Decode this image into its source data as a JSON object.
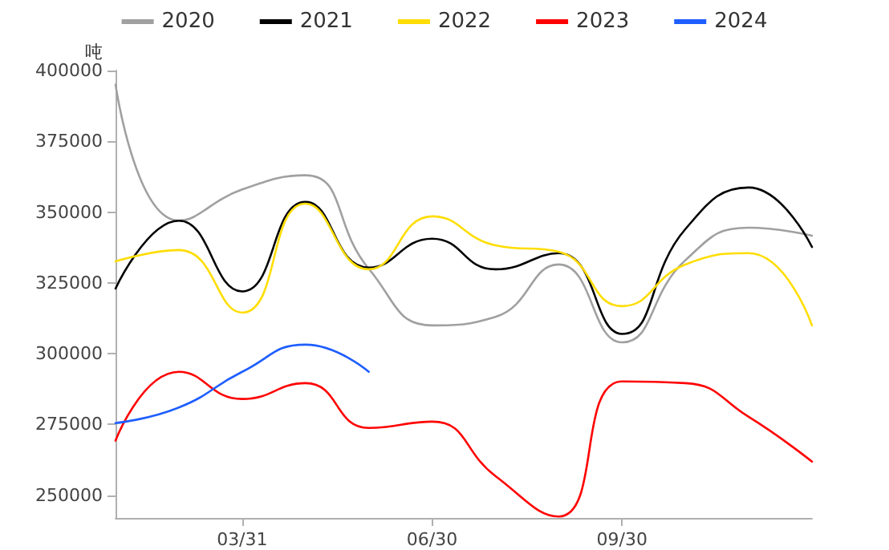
{
  "chart_data": {
    "type": "line",
    "ylabel": "吨",
    "categories": [
      null,
      null,
      "03/31",
      null,
      null,
      "06/30",
      null,
      null,
      "09/30",
      null,
      null,
      null
    ],
    "ylim": [
      242000,
      400000
    ],
    "yticks": [
      250000,
      275000,
      300000,
      325000,
      350000,
      375000,
      400000
    ],
    "grid": false,
    "legend": "top",
    "marker": "none",
    "line_style": "solid",
    "series": [
      {
        "name": "2020",
        "color": "#a0a0a0",
        "values": [
          395000,
          347000,
          358000,
          363000,
          330000,
          310000,
          313000,
          331500,
          304000,
          333000,
          344500,
          341700
        ]
      },
      {
        "name": "2021",
        "color": "#000000",
        "values": [
          323000,
          347000,
          322000,
          353600,
          330400,
          340600,
          329800,
          335500,
          307000,
          344000,
          358700,
          337700
        ]
      },
      {
        "name": "2022",
        "color": "#ffdd00",
        "values": [
          332600,
          336600,
          314500,
          353000,
          329800,
          348500,
          338300,
          336000,
          316800,
          331500,
          335500,
          310000
        ]
      },
      {
        "name": "2023",
        "color": "#ff0000",
        "values": [
          269300,
          293600,
          284000,
          289600,
          273800,
          276000,
          256800,
          242500,
          290200,
          289600,
          277700,
          261900
        ]
      },
      {
        "name": "2024",
        "color": "#1e5eff",
        "values": [
          275500,
          281000,
          293600,
          303200,
          293600,
          null,
          null,
          null,
          null,
          null,
          null,
          null
        ]
      }
    ]
  }
}
